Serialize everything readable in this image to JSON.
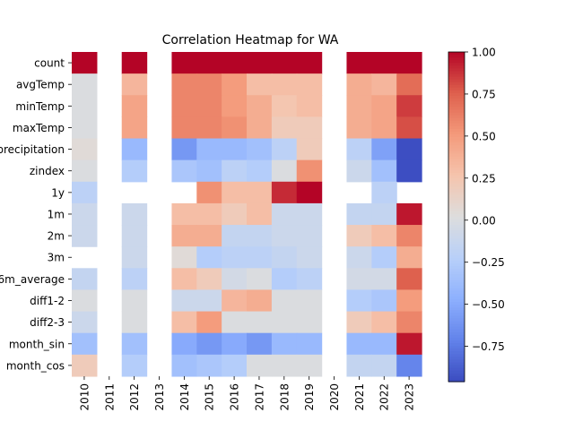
{
  "chart_data": {
    "type": "heatmap",
    "title": "Correlation Heatmap for WA",
    "columns": [
      "2010",
      "2011",
      "2012",
      "2013",
      "2014",
      "2015",
      "2016",
      "2017",
      "2018",
      "2019",
      "2020",
      "2021",
      "2022",
      "2023"
    ],
    "rows": [
      "count",
      "avgTemp",
      "minTemp",
      "maxTemp",
      "precipitation",
      "zindex",
      "1y",
      "1m",
      "2m",
      "3m",
      "6m_average",
      "diff1-2",
      "diff2-3",
      "month_sin",
      "month_cos"
    ],
    "values": [
      [
        1.0,
        null,
        1.0,
        null,
        1.0,
        1.0,
        1.0,
        1.0,
        1.0,
        1.0,
        null,
        1.0,
        1.0,
        1.0
      ],
      [
        0.0,
        null,
        0.35,
        null,
        0.6,
        0.6,
        0.5,
        0.3,
        0.3,
        0.3,
        null,
        0.4,
        0.35,
        0.7
      ],
      [
        0.0,
        null,
        0.45,
        null,
        0.6,
        0.6,
        0.5,
        0.4,
        0.25,
        0.3,
        null,
        0.4,
        0.45,
        0.85
      ],
      [
        0.0,
        null,
        0.45,
        null,
        0.6,
        0.6,
        0.55,
        0.4,
        0.2,
        0.2,
        null,
        0.4,
        0.45,
        0.8
      ],
      [
        0.05,
        null,
        -0.4,
        null,
        -0.6,
        -0.4,
        -0.4,
        -0.35,
        -0.2,
        0.2,
        null,
        -0.2,
        -0.55,
        -0.95
      ],
      [
        0.0,
        null,
        -0.25,
        null,
        -0.3,
        -0.35,
        -0.2,
        -0.25,
        0.0,
        0.55,
        null,
        -0.1,
        -0.35,
        -0.95
      ],
      [
        -0.2,
        null,
        null,
        null,
        null,
        0.55,
        0.3,
        0.3,
        0.9,
        1.0,
        null,
        null,
        -0.2,
        null
      ],
      [
        -0.1,
        null,
        -0.1,
        null,
        0.3,
        0.3,
        0.2,
        0.3,
        -0.1,
        -0.1,
        null,
        -0.15,
        -0.15,
        0.95
      ],
      [
        -0.1,
        null,
        -0.1,
        null,
        0.4,
        0.4,
        -0.15,
        -0.15,
        -0.1,
        -0.1,
        null,
        0.2,
        0.3,
        0.6
      ],
      [
        null,
        null,
        -0.1,
        null,
        0.05,
        -0.25,
        -0.2,
        -0.2,
        -0.15,
        -0.1,
        null,
        -0.1,
        -0.25,
        0.4
      ],
      [
        -0.15,
        null,
        -0.2,
        null,
        0.3,
        0.2,
        -0.05,
        0.0,
        -0.25,
        -0.2,
        null,
        -0.05,
        -0.05,
        0.75
      ],
      [
        0.0,
        null,
        0.0,
        null,
        -0.1,
        -0.1,
        0.35,
        0.4,
        0.0,
        0.0,
        null,
        -0.25,
        -0.3,
        0.5
      ],
      [
        -0.1,
        null,
        0.0,
        null,
        0.3,
        0.5,
        0.0,
        0.0,
        0.0,
        0.0,
        null,
        0.2,
        0.3,
        0.6
      ],
      [
        -0.35,
        null,
        -0.35,
        null,
        -0.5,
        -0.6,
        -0.5,
        -0.6,
        -0.4,
        -0.4,
        null,
        -0.4,
        -0.4,
        0.95
      ],
      [
        0.2,
        null,
        -0.25,
        null,
        -0.35,
        -0.3,
        -0.25,
        0.0,
        0.0,
        0.0,
        null,
        -0.15,
        -0.15,
        -0.7
      ]
    ],
    "colorbar": {
      "min": -0.96,
      "max": 1.0,
      "ticks": [
        "1.00",
        "0.75",
        "0.50",
        "0.25",
        "0.00",
        "−0.25",
        "−0.50",
        "−0.75"
      ],
      "tick_values": [
        1.0,
        0.75,
        0.5,
        0.25,
        0.0,
        -0.25,
        -0.5,
        -0.75
      ]
    },
    "colormap": "coolwarm",
    "xlabel": "",
    "ylabel": ""
  }
}
